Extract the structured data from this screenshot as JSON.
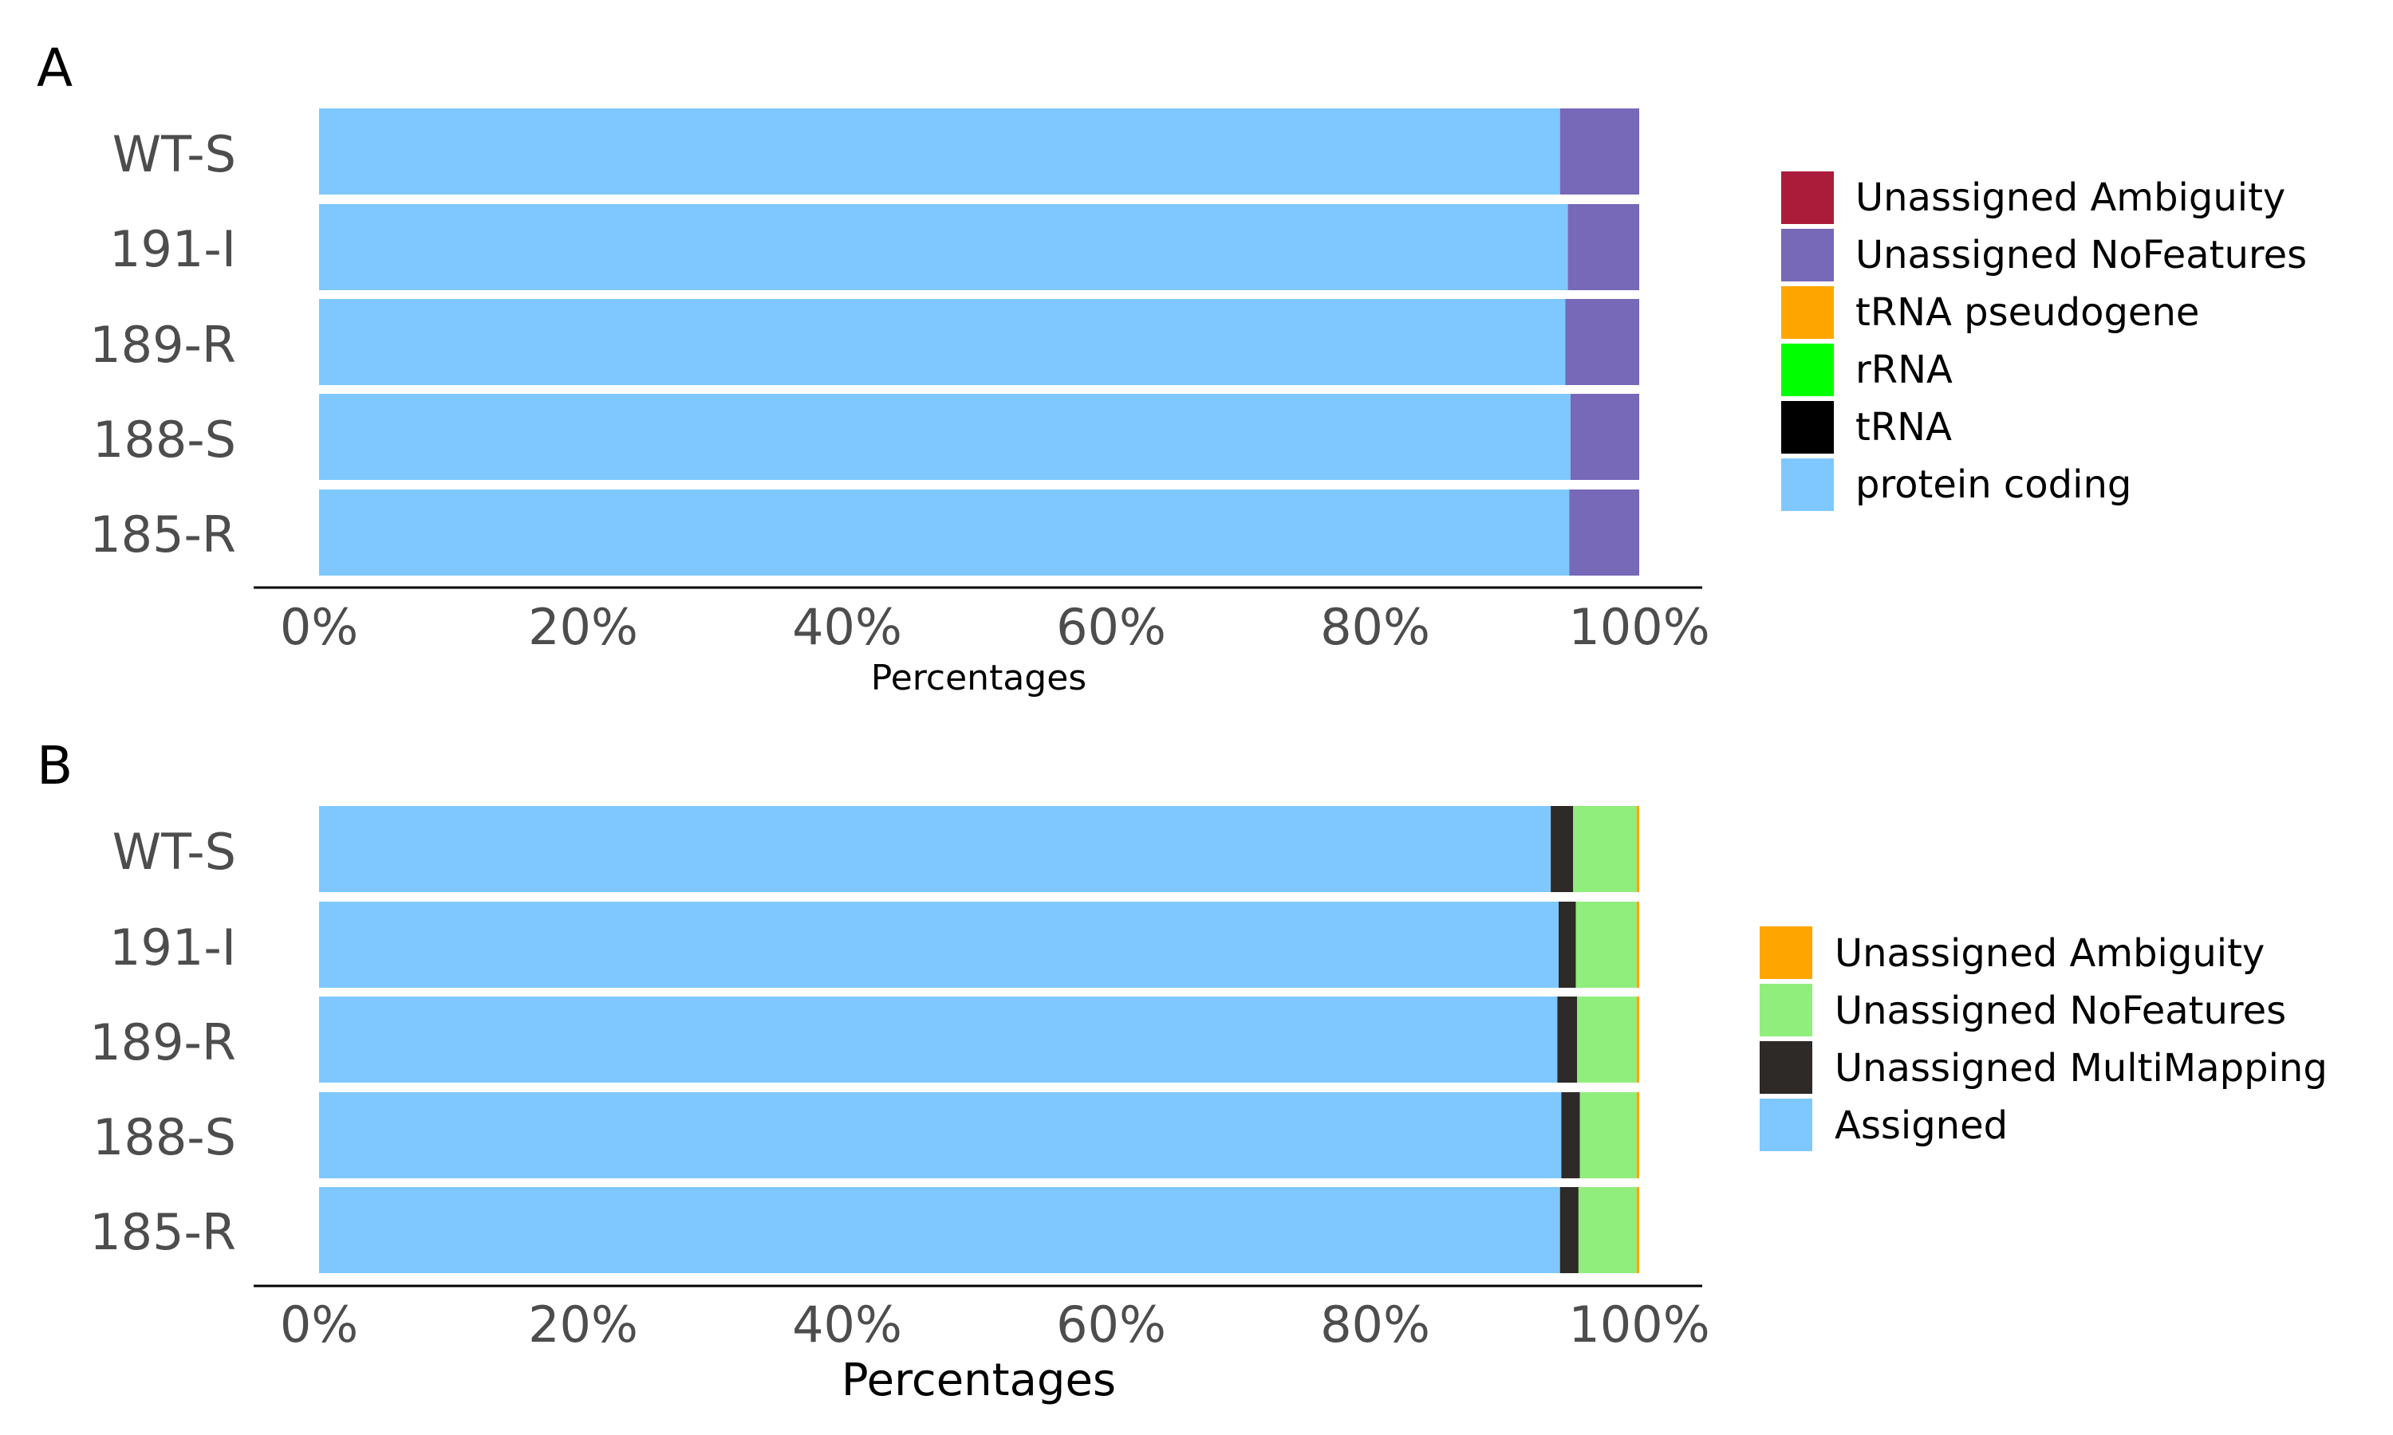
{
  "chart_data": [
    {
      "panel_tag": "A",
      "type": "bar",
      "orientation": "horizontal",
      "stacked": true,
      "categories": [
        "WT-S",
        "191-I",
        "189-R",
        "188-S",
        "185-R"
      ],
      "xlabel": "Percentages",
      "xlim": [
        0,
        100
      ],
      "x_ticks": [
        "0%",
        "20%",
        "40%",
        "60%",
        "80%",
        "100%"
      ],
      "grid": false,
      "legend_position": "right",
      "series": [
        {
          "name": "protein coding",
          "color": "#7ec8ff",
          "values": [
            94.0,
            94.6,
            94.4,
            94.8,
            94.7
          ]
        },
        {
          "name": "tRNA",
          "color": "#000000",
          "values": [
            0,
            0,
            0,
            0,
            0
          ]
        },
        {
          "name": "rRNA",
          "color": "#00ff00",
          "values": [
            0,
            0,
            0,
            0,
            0
          ]
        },
        {
          "name": "tRNA pseudogene",
          "color": "#ffa500",
          "values": [
            0,
            0,
            0,
            0,
            0
          ]
        },
        {
          "name": "Unassigned NoFeatures",
          "color": "#7768b8",
          "values": [
            6.0,
            5.4,
            5.6,
            5.2,
            5.3
          ]
        },
        {
          "name": "Unassigned Ambiguity",
          "color": "#ab1c3a",
          "values": [
            0,
            0,
            0,
            0,
            0
          ]
        }
      ],
      "legend_order": [
        "Unassigned Ambiguity",
        "Unassigned NoFeatures",
        "tRNA pseudogene",
        "rRNA",
        "tRNA",
        "protein coding"
      ]
    },
    {
      "panel_tag": "B",
      "type": "bar",
      "orientation": "horizontal",
      "stacked": true,
      "categories": [
        "WT-S",
        "191-I",
        "189-R",
        "188-S",
        "185-R"
      ],
      "xlabel": "Percentages",
      "xlim": [
        0,
        100
      ],
      "x_ticks": [
        "0%",
        "20%",
        "40%",
        "60%",
        "80%",
        "100%"
      ],
      "grid": false,
      "legend_position": "right",
      "series": [
        {
          "name": "Assigned",
          "color": "#7ec8ff",
          "values": [
            93.3,
            93.9,
            93.8,
            94.1,
            94.0
          ]
        },
        {
          "name": "Unassigned MultiMapping",
          "color": "#2d2a28",
          "values": [
            1.7,
            1.3,
            1.5,
            1.4,
            1.4
          ]
        },
        {
          "name": "Unassigned NoFeatures",
          "color": "#90ee7c",
          "values": [
            4.8,
            4.6,
            4.5,
            4.3,
            4.4
          ]
        },
        {
          "name": "Unassigned Ambiguity",
          "color": "#ffa500",
          "values": [
            0.2,
            0.2,
            0.2,
            0.2,
            0.2
          ]
        }
      ],
      "legend_order": [
        "Unassigned Ambiguity",
        "Unassigned NoFeatures",
        "Unassigned MultiMapping",
        "Assigned"
      ]
    }
  ]
}
